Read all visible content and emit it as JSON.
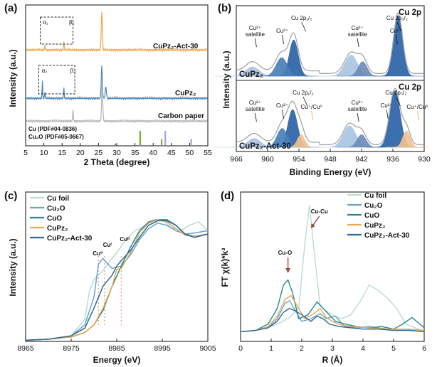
{
  "colors": {
    "cu_foil": "#b9dcd6",
    "cu2o": "#6ba3c8",
    "cuo": "#1f8a96",
    "cupz2": "#f0a64a",
    "cupz2_act30": "#2f6896",
    "carbon": "#b3b3b3",
    "dark_blue": "#2a63a6",
    "mid_blue": "#4a7fb8",
    "light_blue": "#a9c4e2",
    "sat_blue": "#6d8bba",
    "orange_fill": "#f1c18f",
    "grey_env": "#b0b0b0",
    "ref_cu": "#9aa6e6",
    "ref_cu2o": "#76b32a"
  },
  "chart_data": [
    {
      "panel": "(a)",
      "type": "line",
      "title": "",
      "xlabel": "2 Theta (degree)",
      "ylabel": "Intensity (a.u.)",
      "xlim": [
        5,
        55
      ],
      "x_ticks": [
        "5",
        "10",
        "15",
        "20",
        "25",
        "30",
        "35",
        "40",
        "45",
        "50",
        "55"
      ],
      "series": [
        {
          "name": "CuPz₂-Act-30",
          "label": "CuPz2-Act-30",
          "color": "#f0a64a",
          "peaks": [
            [
              10.3,
              0.35
            ],
            [
              15.5,
              0.6
            ],
            [
              25.9,
              3.0
            ]
          ]
        },
        {
          "name": "CuPz₂",
          "label": "CuPz2",
          "color": "#4a86b8",
          "peaks": [
            [
              9.6,
              1.3
            ],
            [
              10.3,
              0.5
            ],
            [
              15.5,
              0.8
            ],
            [
              25.9,
              2.5
            ],
            [
              27.0,
              0.9
            ]
          ]
        },
        {
          "name": "Carbon paper",
          "label": "Carbon paper",
          "color": "#b3b3b3",
          "peaks": [
            [
              18.0,
              0.9
            ],
            [
              26.0,
              2.9
            ]
          ]
        }
      ],
      "annotations": [
        {
          "text": "α₁",
          "x": 10.3,
          "series": 0
        },
        {
          "text": "β₁",
          "x": 17.5,
          "series": 0
        },
        {
          "text": "α₂",
          "x": 10.0,
          "series": 1
        },
        {
          "text": "β₂",
          "x": 17.8,
          "series": 1
        }
      ],
      "references": [
        {
          "name": "Cu (PDF#04-0836)",
          "color": "#9aa6e6",
          "sticks": [
            [
              43.3,
              1.0
            ],
            [
              50.4,
              0.45
            ]
          ]
        },
        {
          "name": "Cu₂O (PDF#05-0667)",
          "color": "#76b32a",
          "sticks": [
            [
              29.6,
              0.1
            ],
            [
              36.4,
              1.0
            ],
            [
              42.3,
              0.4
            ]
          ]
        }
      ]
    },
    {
      "panel": "(b)",
      "type": "area",
      "title": "Cu 2p",
      "xlabel": "Binding Energy (eV)",
      "ylabel": "Intensity (a.u.)",
      "xlim": [
        966,
        930
      ],
      "x_ticks": [
        "966",
        "960",
        "954",
        "948",
        "942",
        "936",
        "930"
      ],
      "x_tick_values": [
        966,
        960,
        954,
        948,
        942,
        936,
        930
      ],
      "subplots": [
        {
          "name": "CuPz₂",
          "components": [
            {
              "center": 962.9,
              "width": 1.8,
              "height": 0.14,
              "color": "#a9c4e2"
            },
            {
              "center": 955.0,
              "width": 1.2,
              "height": 0.55,
              "color": "#2a63a6"
            },
            {
              "center": 957.3,
              "width": 1.5,
              "height": 0.28,
              "color": "#4a7fb8"
            },
            {
              "center": 944.0,
              "width": 1.7,
              "height": 0.32,
              "color": "#a9c4e2"
            },
            {
              "center": 941.8,
              "width": 1.2,
              "height": 0.22,
              "color": "#6d8bba"
            },
            {
              "center": 935.0,
              "width": 1.2,
              "height": 0.92,
              "color": "#2a63a6"
            }
          ],
          "labels": [
            {
              "text": "Cu²⁺",
              "sub": "satellite",
              "x": 962.4
            },
            {
              "text": "Cu 2p₁/₂",
              "x": 953.5
            },
            {
              "text": "Cu²⁺",
              "x": 957.2
            },
            {
              "text": "Cu²⁺",
              "sub": "satellite",
              "x": 942.8
            },
            {
              "text": "Cu 2p₃/₂",
              "x": 935.2
            },
            {
              "text": "Cu²⁺",
              "x": 935.4
            }
          ]
        },
        {
          "name": "CuPz₂-Act-30",
          "components": [
            {
              "center": 962.6,
              "width": 1.8,
              "height": 0.14,
              "color": "#a9c4e2"
            },
            {
              "center": 955.2,
              "width": 1.3,
              "height": 0.6,
              "color": "#2a63a6"
            },
            {
              "center": 957.2,
              "width": 1.4,
              "height": 0.3,
              "color": "#4a7fb8"
            },
            {
              "center": 953.6,
              "width": 1.0,
              "height": 0.2,
              "color": "#f1c18f"
            },
            {
              "center": 944.3,
              "width": 1.7,
              "height": 0.34,
              "color": "#a9c4e2"
            },
            {
              "center": 942.0,
              "width": 1.2,
              "height": 0.2,
              "color": "#6d8bba"
            },
            {
              "center": 935.6,
              "width": 1.4,
              "height": 0.9,
              "color": "#2a63a6"
            },
            {
              "center": 933.4,
              "width": 1.0,
              "height": 0.26,
              "color": "#f1c18f"
            }
          ],
          "labels": [
            {
              "text": "Cu²⁺",
              "sub": "satellite",
              "x": 962.4
            },
            {
              "text": "Cu 2p₁/₂",
              "x": 953.2
            },
            {
              "text": "Cu²⁺",
              "x": 957.2
            },
            {
              "text": "Cu⁺/Cu⁰",
              "x": 951.6,
              "orange": true
            },
            {
              "text": "Cu²⁺",
              "sub": "satellite",
              "x": 942.8
            },
            {
              "text": "Cu 2p₃/₂",
              "x": 935.4
            },
            {
              "text": "Cu²⁺",
              "x": 937.2
            },
            {
              "text": "Cu⁺/Cu⁰",
              "x": 931.3,
              "orange": true
            }
          ]
        }
      ]
    },
    {
      "panel": "(c)",
      "type": "line",
      "title": "",
      "xlabel": "Energy (eV)",
      "ylabel": "Intensity (a.u.)",
      "xlim": [
        8965,
        9005
      ],
      "ylim": [
        0,
        1.35
      ],
      "x_ticks": [
        "8965",
        "8975",
        "8985",
        "8995",
        "9005"
      ],
      "x_tick_values": [
        8965,
        8975,
        8985,
        8995,
        9005
      ],
      "series": [
        {
          "name": "Cu foil",
          "color": "#b9dcd6",
          "x": [
            8965,
            8970,
            8975,
            8978,
            8979,
            8980,
            8981,
            8982,
            8983,
            8985,
            8987,
            8989,
            8991,
            8993,
            8995,
            8997,
            8999,
            9001,
            9003,
            9005
          ],
          "y": [
            0.01,
            0.02,
            0.05,
            0.2,
            0.45,
            0.56,
            0.6,
            0.64,
            0.7,
            0.8,
            0.92,
            1.0,
            1.04,
            1.1,
            1.1,
            1.03,
            1.0,
            1.05,
            1.08,
            1.0
          ]
        },
        {
          "name": "Cu₂O",
          "color": "#6ba3c8",
          "x": [
            8965,
            8970,
            8975,
            8978,
            8980,
            8981,
            8982,
            8983,
            8984,
            8986,
            8988,
            8990,
            8992,
            8994,
            8996,
            8998,
            9000,
            9002,
            9005
          ],
          "y": [
            0.01,
            0.02,
            0.05,
            0.15,
            0.4,
            0.7,
            0.75,
            0.7,
            0.66,
            0.68,
            0.78,
            0.92,
            1.02,
            1.07,
            1.05,
            1.0,
            0.97,
            0.98,
            1.0
          ]
        },
        {
          "name": "CuO",
          "color": "#1f8a96",
          "x": [
            8965,
            8970,
            8975,
            8978,
            8980,
            8982,
            8984,
            8986,
            8988,
            8990,
            8992,
            8994,
            8996,
            8998,
            9000,
            9002,
            9005
          ],
          "y": [
            0.01,
            0.02,
            0.04,
            0.08,
            0.15,
            0.28,
            0.5,
            0.68,
            0.85,
            1.0,
            1.08,
            1.1,
            1.1,
            1.05,
            0.97,
            0.95,
            0.97
          ]
        },
        {
          "name": "CuPz₂",
          "label": "CuPz2",
          "color": "#f0a64a",
          "x": [
            8965,
            8970,
            8975,
            8978,
            8980,
            8982,
            8984,
            8985,
            8986,
            8988,
            8990,
            8992,
            8994,
            8996,
            8998,
            9000,
            9002,
            9005
          ],
          "y": [
            0.01,
            0.02,
            0.04,
            0.08,
            0.15,
            0.3,
            0.5,
            0.65,
            0.66,
            0.8,
            0.98,
            1.07,
            1.1,
            1.08,
            1.02,
            0.96,
            0.95,
            0.97
          ]
        },
        {
          "name": "CuPz₂-Act-30",
          "label": "CuPz2-Act-30",
          "color": "#2f6896",
          "x": [
            8965,
            8970,
            8975,
            8978,
            8980,
            8982,
            8984,
            8985,
            8986,
            8988,
            8990,
            8992,
            8994,
            8996,
            8998,
            9000,
            9002,
            9005
          ],
          "y": [
            0.01,
            0.02,
            0.05,
            0.12,
            0.3,
            0.5,
            0.6,
            0.68,
            0.73,
            0.82,
            0.94,
            1.05,
            1.09,
            1.09,
            1.05,
            0.97,
            0.94,
            0.97
          ]
        }
      ],
      "annotations": [
        {
          "text": "Cu⁰",
          "x": 8981
        },
        {
          "text": "Cuᴵ",
          "x": 8982.3
        },
        {
          "text": "Cuᴵᴵ",
          "x": 8986
        }
      ]
    },
    {
      "panel": "(d)",
      "type": "line",
      "title": "",
      "xlabel": "R (Å)",
      "ylabel": "FT χ(k)*k³",
      "xlim": [
        0,
        6
      ],
      "ylim": [
        0,
        1.1
      ],
      "x_ticks": [
        "0",
        "1",
        "2",
        "3",
        "4",
        "5",
        "6"
      ],
      "x_tick_values": [
        0,
        1,
        2,
        3,
        4,
        5,
        6
      ],
      "series": [
        {
          "name": "Cu foil",
          "color": "#b9dcd6",
          "x": [
            0,
            0.5,
            1.0,
            1.3,
            1.6,
            1.9,
            2.1,
            2.25,
            2.4,
            2.6,
            2.8,
            3.0,
            3.3,
            3.6,
            3.9,
            4.2,
            4.5,
            4.8,
            5.1,
            5.4,
            5.7,
            6.0
          ],
          "y": [
            0.02,
            0.03,
            0.06,
            0.09,
            0.13,
            0.2,
            0.7,
            1.0,
            0.65,
            0.22,
            0.18,
            0.15,
            0.12,
            0.15,
            0.25,
            0.38,
            0.34,
            0.28,
            0.2,
            0.08,
            0.05,
            0.02
          ]
        },
        {
          "name": "Cu₂O",
          "color": "#6ba3c8",
          "x": [
            0,
            0.5,
            0.9,
            1.2,
            1.45,
            1.6,
            1.8,
            2.0,
            2.3,
            2.6,
            2.8,
            3.1,
            3.4,
            3.8,
            4.2,
            4.8,
            5.4,
            6.0
          ],
          "y": [
            0.02,
            0.03,
            0.05,
            0.12,
            0.24,
            0.26,
            0.18,
            0.1,
            0.12,
            0.16,
            0.12,
            0.14,
            0.06,
            0.05,
            0.06,
            0.04,
            0.04,
            0.03
          ]
        },
        {
          "name": "CuO",
          "color": "#1f8a96",
          "x": [
            0,
            0.5,
            0.9,
            1.2,
            1.4,
            1.55,
            1.7,
            1.9,
            2.2,
            2.5,
            2.7,
            2.9,
            3.1,
            3.4,
            3.8,
            4.2,
            4.6,
            5.0,
            5.3,
            5.6,
            6.0
          ],
          "y": [
            0.02,
            0.03,
            0.08,
            0.2,
            0.38,
            0.42,
            0.32,
            0.12,
            0.15,
            0.25,
            0.2,
            0.15,
            0.1,
            0.08,
            0.06,
            0.05,
            0.06,
            0.04,
            0.08,
            0.13,
            0.05
          ]
        },
        {
          "name": "CuPz₂",
          "label": "CuPz2",
          "color": "#f0a64a",
          "x": [
            0,
            0.5,
            0.9,
            1.2,
            1.45,
            1.65,
            1.85,
            2.1,
            2.4,
            2.6,
            2.8,
            3.0,
            3.3,
            3.7,
            4.2,
            4.8,
            5.4,
            6.0
          ],
          "y": [
            0.02,
            0.03,
            0.06,
            0.14,
            0.27,
            0.3,
            0.22,
            0.12,
            0.16,
            0.2,
            0.13,
            0.1,
            0.07,
            0.06,
            0.05,
            0.04,
            0.04,
            0.03
          ]
        },
        {
          "name": "CuPz₂-Act-30",
          "label": "CuPz2-Act-30",
          "color": "#2f6896",
          "x": [
            0,
            0.5,
            0.9,
            1.2,
            1.4,
            1.6,
            1.8,
            2.0,
            2.3,
            2.5,
            2.7,
            2.9,
            3.2,
            3.6,
            4.0,
            4.5,
            5.0,
            5.5,
            6.0
          ],
          "y": [
            0.02,
            0.03,
            0.05,
            0.1,
            0.17,
            0.2,
            0.18,
            0.15,
            0.1,
            0.14,
            0.12,
            0.08,
            0.06,
            0.05,
            0.04,
            0.04,
            0.03,
            0.03,
            0.02
          ]
        }
      ],
      "annotations": [
        {
          "text": "Cu-Cu",
          "x": 2.25
        },
        {
          "text": "Cu-O",
          "x": 1.55
        }
      ]
    }
  ]
}
